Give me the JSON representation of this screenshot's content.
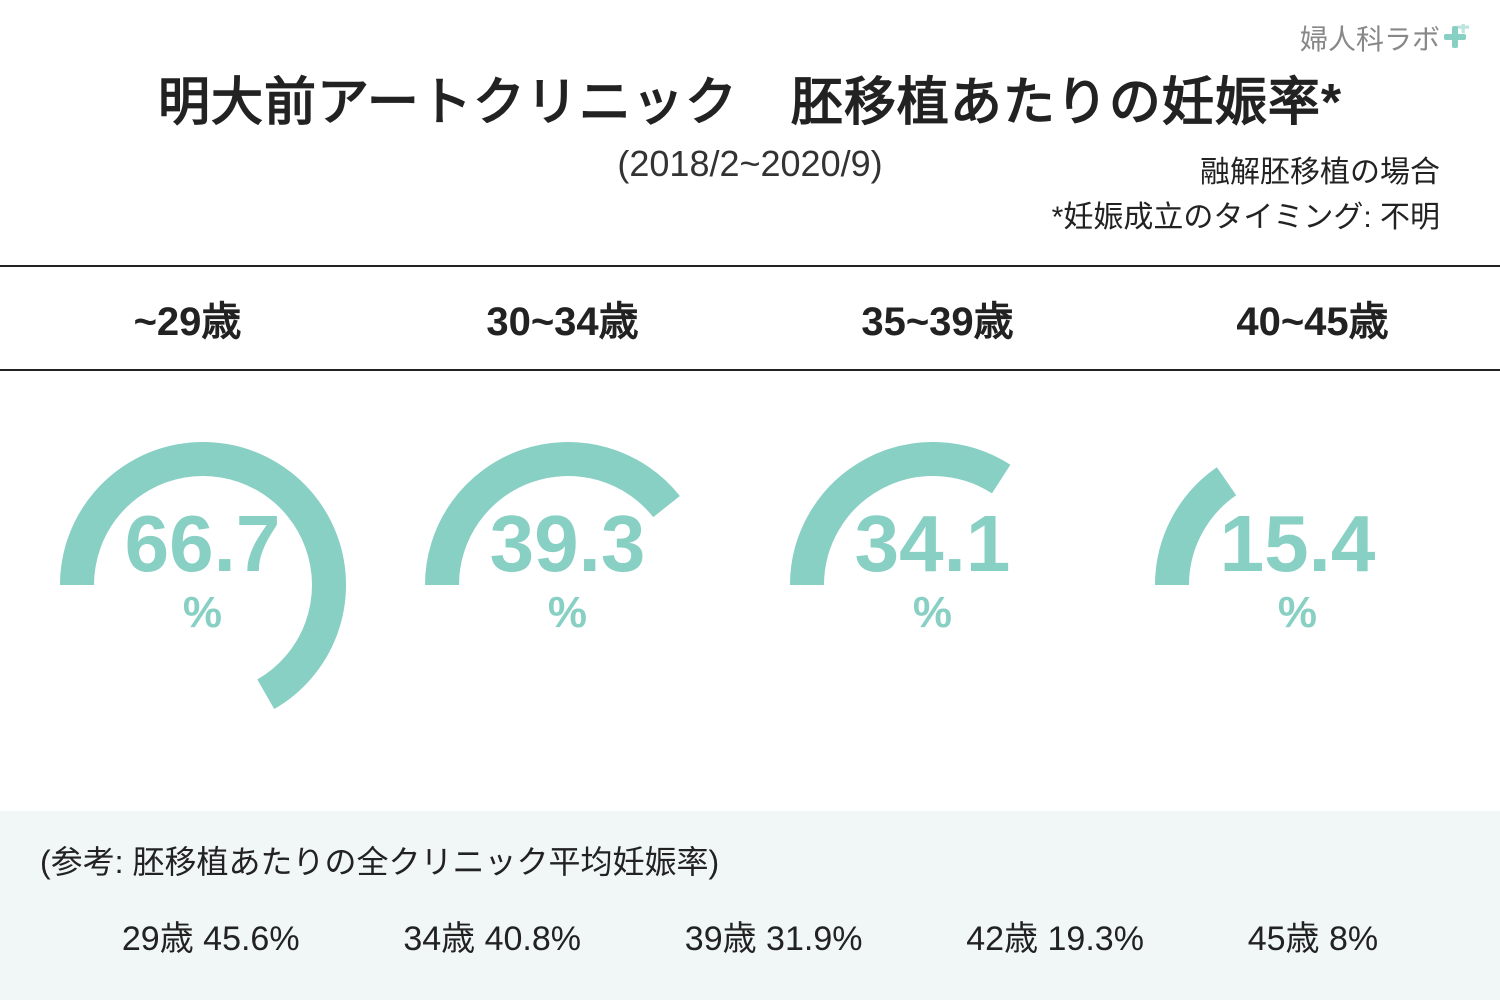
{
  "logo": {
    "text": "婦人科ラボ",
    "icon_color": "#88cfc4"
  },
  "title": "明大前アートクリニック　胚移植あたりの妊娠率*",
  "subtitle": "(2018/2~2020/9)",
  "notes": {
    "line1": "融解胚移植の場合",
    "line2": "*妊娠成立のタイミング: 不明"
  },
  "chart": {
    "type": "radial-gauge",
    "arc_color": "#88cfc4",
    "text_color": "#88cfc4",
    "stroke_width": 34,
    "radius": 126,
    "start_angle_deg": -90,
    "background_color": "#ffffff",
    "footer_background": "#f0f7f6",
    "columns": [
      {
        "label": "~29歳",
        "value": 66.7
      },
      {
        "label": "30~34歳",
        "value": 39.3
      },
      {
        "label": "35~39歳",
        "value": 34.1
      },
      {
        "label": "40~45歳",
        "value": 15.4
      }
    ]
  },
  "reference": {
    "title": "(参考: 胚移植あたりの全クリニック平均妊娠率)",
    "items": [
      {
        "age": "29歳",
        "value": "45.6%"
      },
      {
        "age": "34歳",
        "value": "40.8%"
      },
      {
        "age": "39歳",
        "value": "31.9%"
      },
      {
        "age": "42歳",
        "value": "19.3%"
      },
      {
        "age": "45歳",
        "value": "8%"
      }
    ]
  }
}
